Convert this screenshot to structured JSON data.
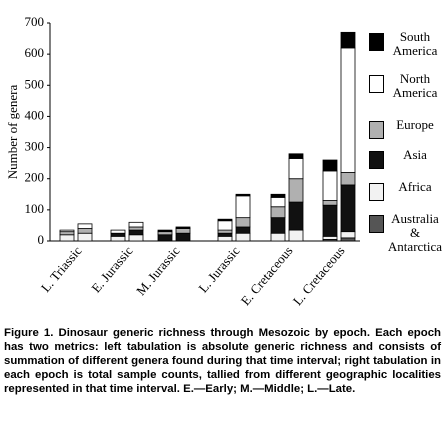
{
  "chart_data": {
    "type": "bar",
    "stacked": true,
    "y_label": "Number of genera",
    "categories": [
      "L. Triassic",
      null,
      "E. Jurassic",
      null,
      "M. Jurassic",
      null,
      "L. Jurassic",
      null,
      "E. Cretaceous",
      null,
      "L. Cretaceous",
      null
    ],
    "series": [
      {
        "name": "Australia & Antarctica",
        "color": "#555555",
        "values": [
          0,
          0,
          0,
          0,
          0,
          0,
          0,
          0,
          0,
          0,
          5,
          10
        ]
      },
      {
        "name": "Africa",
        "color": "#f2f2f2",
        "values": [
          20,
          25,
          15,
          20,
          0,
          0,
          15,
          25,
          25,
          35,
          10,
          20
        ]
      },
      {
        "name": "Asia",
        "color": "#111111",
        "values": [
          0,
          0,
          10,
          15,
          20,
          25,
          10,
          20,
          50,
          90,
          100,
          150
        ]
      },
      {
        "name": "Europe",
        "color": "#b0b0b0",
        "values": [
          10,
          15,
          0,
          10,
          10,
          15,
          10,
          30,
          35,
          75,
          15,
          40
        ]
      },
      {
        "name": "North America",
        "color": "#ffffff",
        "values": [
          5,
          15,
          10,
          15,
          0,
          0,
          30,
          70,
          30,
          65,
          95,
          400
        ]
      },
      {
        "name": "South America",
        "color": "#000000",
        "values": [
          0,
          0,
          0,
          0,
          5,
          5,
          5,
          5,
          10,
          15,
          35,
          50
        ]
      }
    ],
    "ylim": [
      0,
      700
    ],
    "yticks": [
      0,
      100,
      200,
      300,
      400,
      500,
      600,
      700
    ],
    "caption": "Figure 1. Dinosaur generic richness through Mesozoic by epoch. Each epoch has two metrics: left tabulation is absolute generic richness and consists of summation of different genera found during that time interval; right tabulation in each epoch is total sample counts, tallied from different geographic localities represented in that time interval. E.—Early; M.—Middle; L.—Late."
  }
}
